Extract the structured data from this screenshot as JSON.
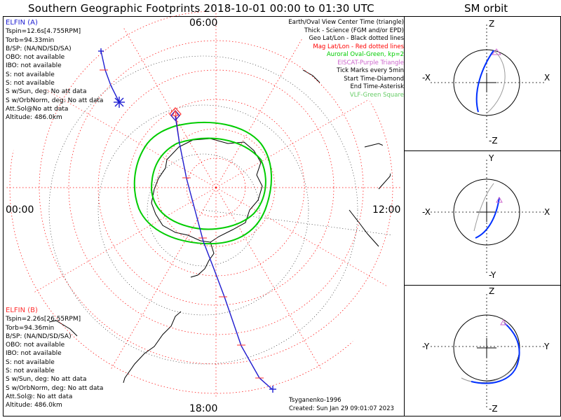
{
  "header": {
    "title": "Southern Geographic Footprints 2018-10-01 00:00 to 01:30 UTC",
    "sm_title": "SM orbit"
  },
  "map": {
    "hour_labels": {
      "top": "06:00",
      "left": "00:00",
      "right": "12:00",
      "bottom": "18:00"
    }
  },
  "elfin_a": {
    "name": "ELFIN (A)",
    "lines": [
      "Tspin=12.6s[4.755RPM]",
      "Torb=94.33min",
      "B/SP: (NA/ND/SD/SA)",
      "OBO: not available",
      "IBO: not available",
      "S: not available",
      "S: not available",
      "S w/Sun, deg: No att data",
      "S w/OrbNorm, deg: No att data",
      "Att.Sol@No att data",
      "Altitude: 486.0km"
    ],
    "color": "#1e1ed2"
  },
  "elfin_b": {
    "name": "ELFIN (B)",
    "lines": [
      "Tspin=2.26s[26.55RPM]",
      "Torb=94.36min",
      "B/SP: (NA/ND/SD/SA)",
      "OBO: not available",
      "IBO: not available",
      "S: not available",
      "S: not available",
      "S w/Sun, deg: No att data",
      "S w/OrbNorm, deg: No att data",
      "Att.Sol@: No att data",
      "Altitude: 486.0km"
    ],
    "color": "#ff3030"
  },
  "legend": [
    {
      "text": "Earth/Oval View Center Time (triangle)",
      "color": "#000000"
    },
    {
      "text": "Thick - Science (FGM and/or EPD)",
      "color": "#000000"
    },
    {
      "text": "Geo Lat/Lon - Black dotted lines",
      "color": "#000000"
    },
    {
      "text": "Mag Lat/Lon - Red dotted lines",
      "color": "#ff0000"
    },
    {
      "text": "Auroral Oval-Green, kp=2",
      "color": "#00cc00"
    },
    {
      "text": "EISCAT-Purple Triangle",
      "color": "#cc66cc"
    },
    {
      "text": "Tick Marks every 5min",
      "color": "#000000"
    },
    {
      "text": "Start Time-Diamond",
      "color": "#000000"
    },
    {
      "text": "End Time-Asterisk",
      "color": "#000000"
    },
    {
      "text": "VLF-Green Square",
      "color": "#66cc66"
    }
  ],
  "footer": {
    "model": "Tsyganenko-1996",
    "created": "Created: Sun Jan 29 09:01:07 2023"
  },
  "sm_panels": [
    {
      "up": "Z",
      "down": "-Z",
      "left": "-X",
      "right": "X"
    },
    {
      "up": "Y",
      "down": "-Y",
      "left": "-X",
      "right": "X"
    },
    {
      "up": "Z",
      "down": "-Z",
      "left": "-Y",
      "right": "Y"
    }
  ],
  "colors": {
    "orbit_a": "#1e1ed2",
    "orbit_b": "#ff3030",
    "mag_grid": "#ff0000",
    "auroral_oval": "#00cc00",
    "eiscat": "#cc66cc",
    "sm_orbit": "#0030ff"
  }
}
